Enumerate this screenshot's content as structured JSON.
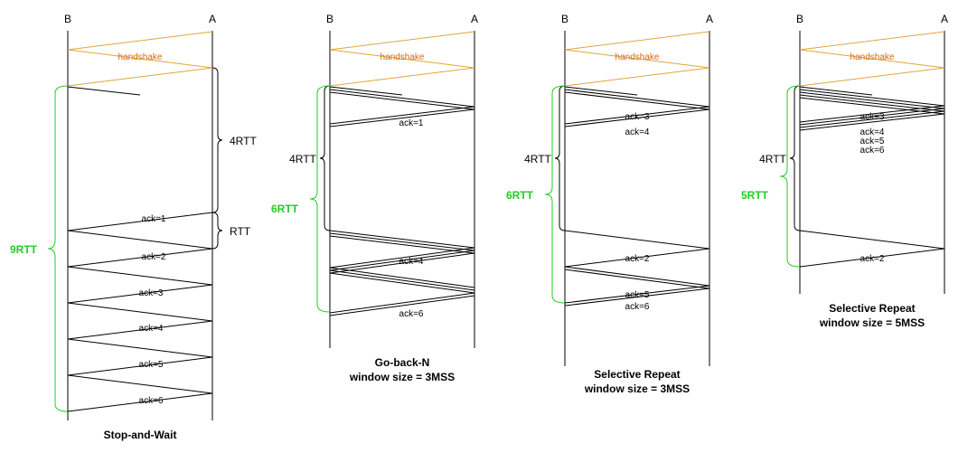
{
  "colors": {
    "line": "#000000",
    "handshake": "#e0a53a",
    "handshake_text": "#d4690e",
    "green": "#22cc22"
  },
  "panels": [
    {
      "node_b": "B",
      "node_a": "A",
      "handshake": "handshake",
      "caption": [
        "Stop-and-Wait"
      ],
      "acks": [
        "ack=1",
        "ack=2",
        "ack=3",
        "ack=4",
        "ack=5",
        "ack=6"
      ],
      "black_braces": [
        "4RTT",
        "RTT"
      ],
      "green_brace": "9RTT"
    },
    {
      "node_b": "B",
      "node_a": "A",
      "handshake": "handshake",
      "caption": [
        "Go-back-N",
        "window size = 3MSS"
      ],
      "acks": [
        "ack=1",
        "ack=4",
        "ack=6"
      ],
      "black_braces": [
        "4RTT"
      ],
      "green_brace": "6RTT"
    },
    {
      "node_b": "B",
      "node_a": "A",
      "handshake": "handshake",
      "caption": [
        "Selective Repeat",
        "window size = 3MSS"
      ],
      "acks": [
        "ack=3",
        "ack=4",
        "ack=2",
        "ack=5",
        "ack=6"
      ],
      "black_braces": [
        "4RTT"
      ],
      "green_brace": "6RTT"
    },
    {
      "node_b": "B",
      "node_a": "A",
      "handshake": "handshake",
      "caption": [
        "Selective Repeat",
        "window size = 5MSS"
      ],
      "acks": [
        "ack=3",
        "ack=4",
        "ack=5",
        "ack=6",
        "ack=2"
      ],
      "black_braces": [
        "4RTT"
      ],
      "green_brace": "5RTT"
    }
  ]
}
